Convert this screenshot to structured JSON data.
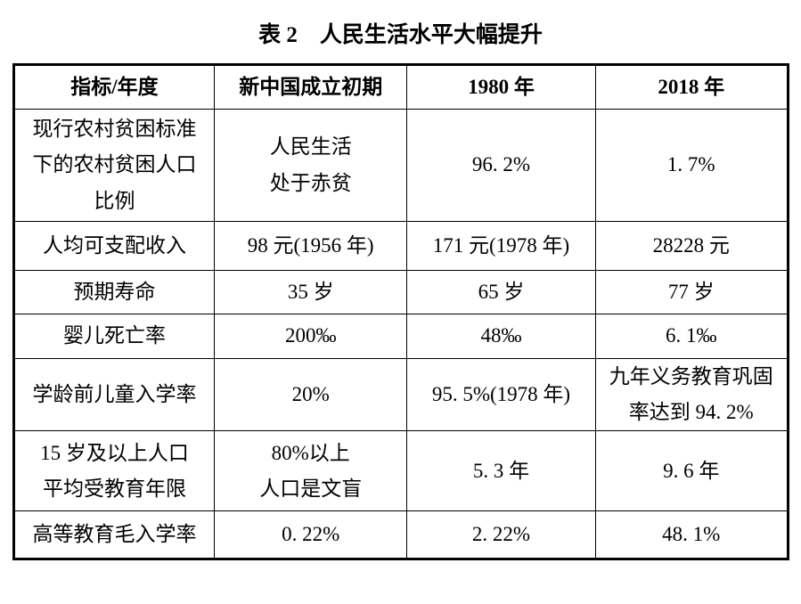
{
  "title": "表 2　人民生活水平大幅提升",
  "table": {
    "headers": [
      "指标/年度",
      "新中国成立初期",
      "1980 年",
      "2018 年"
    ],
    "rows": [
      [
        "现行农村贫困标准\n下的农村贫困人口\n比例",
        "人民生活\n处于赤贫",
        "96. 2%",
        "1. 7%"
      ],
      [
        "人均可支配收入",
        "98 元(1956 年)",
        "171 元(1978 年)",
        "28228 元"
      ],
      [
        "预期寿命",
        "35 岁",
        "65 岁",
        "77 岁"
      ],
      [
        "婴儿死亡率",
        "200‰",
        "48‰",
        "6. 1‰"
      ],
      [
        "学龄前儿童入学率",
        "20%",
        "95. 5%(1978 年)",
        "九年义务教育巩固\n率达到 94. 2%"
      ],
      [
        "15 岁及以上人口\n平均受教育年限",
        "80%以上\n人口是文盲",
        "5. 3 年",
        "9. 6 年"
      ],
      [
        "高等教育毛入学率",
        "0. 22%",
        "2. 22%",
        "48. 1%"
      ]
    ]
  },
  "colors": {
    "text": "#000000",
    "background": "#ffffff",
    "border": "#000000"
  }
}
